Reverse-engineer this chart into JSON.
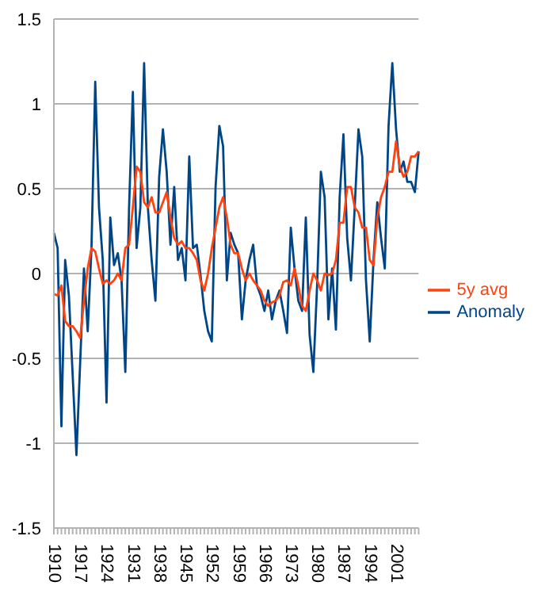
{
  "chart_data": {
    "type": "line",
    "categories": [
      "1910",
      null,
      null,
      null,
      null,
      null,
      null,
      "1917",
      null,
      null,
      null,
      null,
      null,
      null,
      "1924",
      null,
      null,
      null,
      null,
      null,
      null,
      "1931",
      null,
      null,
      null,
      null,
      null,
      null,
      "1938",
      null,
      null,
      null,
      null,
      null,
      null,
      "1945",
      null,
      null,
      null,
      null,
      null,
      null,
      "1952",
      null,
      null,
      null,
      null,
      null,
      null,
      "1959",
      null,
      null,
      null,
      null,
      null,
      null,
      "1966",
      null,
      null,
      null,
      null,
      null,
      null,
      "1973",
      null,
      null,
      null,
      null,
      null,
      null,
      "1980",
      null,
      null,
      null,
      null,
      null,
      null,
      "1987",
      null,
      null,
      null,
      null,
      null,
      null,
      "1994",
      null,
      null,
      null,
      null,
      null,
      null,
      "2001",
      null,
      null,
      null,
      null,
      null,
      null
    ],
    "series": [
      {
        "name": "Anomaly",
        "color": "#004586",
        "values": [
          0.24,
          0.15,
          -0.9,
          0.08,
          -0.13,
          -0.6,
          -1.07,
          -0.52,
          0.03,
          -0.34,
          0.15,
          1.13,
          0.39,
          0.08,
          -0.76,
          0.33,
          0.05,
          0.12,
          -0.04,
          -0.58,
          0.39,
          1.07,
          0.15,
          0.39,
          1.24,
          0.39,
          0.08,
          -0.16,
          0.57,
          0.85,
          0.6,
          0.17,
          0.51,
          0.08,
          0.15,
          -0.04,
          0.69,
          0.15,
          0.17,
          -0.01,
          -0.22,
          -0.34,
          -0.4,
          0.51,
          0.87,
          0.75,
          -0.04,
          0.24,
          0.17,
          0.12,
          -0.27,
          -0.04,
          0.08,
          0.17,
          -0.07,
          -0.13,
          -0.22,
          -0.1,
          -0.27,
          -0.16,
          -0.1,
          -0.22,
          -0.35,
          0.27,
          0.03,
          -0.16,
          -0.22,
          0.33,
          -0.36,
          -0.58,
          -0.07,
          0.6,
          0.45,
          -0.27,
          0.03,
          -0.33,
          0.45,
          0.82,
          0.21,
          -0.04,
          0.39,
          0.85,
          0.69,
          -0.04,
          -0.4,
          0.08,
          0.42,
          0.21,
          0.03,
          0.87,
          1.24,
          0.85,
          0.6,
          0.66,
          0.54,
          0.54,
          0.48,
          0.72
        ]
      },
      {
        "name": "5y avg",
        "color": "#ff420e",
        "values": [
          -0.12,
          -0.13,
          -0.07,
          -0.28,
          -0.31,
          -0.31,
          -0.34,
          -0.38,
          -0.16,
          0.03,
          0.15,
          0.13,
          0.03,
          -0.06,
          -0.04,
          -0.06,
          -0.04,
          0,
          -0.04,
          0.15,
          0.17,
          0.39,
          0.63,
          0.6,
          0.42,
          0.39,
          0.45,
          0.36,
          0.36,
          0.42,
          0.48,
          0.33,
          0.21,
          0.17,
          0.19,
          0.15,
          0.15,
          0.12,
          0.08,
          -0.04,
          -0.1,
          0,
          0.15,
          0.27,
          0.39,
          0.45,
          0.33,
          0.17,
          0.12,
          0.12,
          0.03,
          -0.04,
          0,
          -0.04,
          -0.07,
          -0.1,
          -0.16,
          -0.19,
          -0.17,
          -0.16,
          -0.13,
          -0.05,
          -0.04,
          -0.07,
          0.03,
          -0.07,
          -0.19,
          -0.22,
          -0.1,
          0,
          -0.04,
          -0.1,
          0,
          -0.01,
          0,
          0.08,
          0.3,
          0.3,
          0.51,
          0.51,
          0.39,
          0.36,
          0.27,
          0.27,
          0.08,
          0.05,
          0.33,
          0.45,
          0.51,
          0.6,
          0.6,
          0.78,
          0.63,
          0.57,
          0.6,
          0.69,
          0.69,
          0.72
        ]
      }
    ],
    "ylim": [
      -1.5,
      1.5
    ],
    "yticks": [
      -1.5,
      -1,
      -0.5,
      0,
      0.5,
      1,
      1.5
    ],
    "grid": "y",
    "legend": "right",
    "marker": "none",
    "line_style": "solid"
  }
}
